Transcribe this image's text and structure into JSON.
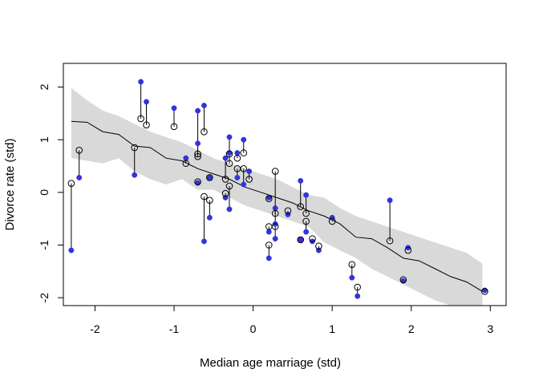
{
  "chart_data": {
    "type": "scatter",
    "title": "",
    "xlabel": "Median age marriage (std)",
    "ylabel": "Divorce rate (std)",
    "xlim": [
      -2.4,
      3.2
    ],
    "ylim": [
      -2.15,
      2.45
    ],
    "xticks": [
      -2,
      -1,
      0,
      1,
      2,
      3
    ],
    "yticks": [
      -2,
      -1,
      0,
      1,
      2
    ],
    "grid": false,
    "colors": {
      "band": "#d9d9d9",
      "mean_line": "#000000",
      "simulated_point": "#3333dd",
      "observed_point_stroke": "#000000",
      "segment": "#000000"
    },
    "interval_band": {
      "x": [
        -2.3,
        -2.1,
        -1.9,
        -1.7,
        -1.5,
        -1.3,
        -1.1,
        -0.9,
        -0.7,
        -0.5,
        -0.3,
        -0.1,
        0.1,
        0.3,
        0.5,
        0.7,
        0.9,
        1.1,
        1.3,
        1.5,
        1.7,
        1.9,
        2.1,
        2.3,
        2.5,
        2.7,
        2.9
      ],
      "upper": [
        1.98,
        1.75,
        1.55,
        1.45,
        1.3,
        1.15,
        1.05,
        0.95,
        0.8,
        0.65,
        0.55,
        0.45,
        0.35,
        0.25,
        0.1,
        -0.05,
        -0.1,
        -0.3,
        -0.45,
        -0.55,
        -0.65,
        -0.75,
        -0.85,
        -0.95,
        -1.05,
        -1.15,
        -1.35
      ],
      "lower": [
        0.65,
        0.6,
        0.55,
        0.65,
        0.4,
        0.25,
        0.15,
        0.25,
        0.05,
        0.05,
        -0.1,
        -0.25,
        -0.35,
        -0.45,
        -0.55,
        -0.65,
        -0.95,
        -1.1,
        -1.25,
        -1.45,
        -1.6,
        -1.75,
        -1.9,
        -2.05,
        -2.15,
        -2.15,
        -2.15
      ]
    },
    "mean_line": {
      "x": [
        -2.3,
        -2.1,
        -1.9,
        -1.7,
        -1.5,
        -1.3,
        -1.1,
        -0.9,
        -0.7,
        -0.5,
        -0.3,
        -0.1,
        0.1,
        0.3,
        0.5,
        0.7,
        0.9,
        1.1,
        1.3,
        1.5,
        1.7,
        1.9,
        2.1,
        2.3,
        2.5,
        2.7,
        2.9
      ],
      "y": [
        1.35,
        1.33,
        1.15,
        1.1,
        0.88,
        0.85,
        0.65,
        0.6,
        0.45,
        0.35,
        0.25,
        0.1,
        0.0,
        -0.1,
        -0.2,
        -0.35,
        -0.45,
        -0.6,
        -0.85,
        -0.88,
        -1.05,
        -1.25,
        -1.3,
        -1.45,
        -1.6,
        -1.7,
        -1.88
      ]
    },
    "series": [
      {
        "marker": "filled-blue-circle",
        "points": [
          [
            -2.3,
            -1.1
          ],
          [
            -2.2,
            0.28
          ],
          [
            -1.5,
            0.33
          ],
          [
            -1.42,
            2.1
          ],
          [
            -1.35,
            1.72
          ],
          [
            -1.0,
            1.6
          ],
          [
            -0.85,
            0.65
          ],
          [
            -0.7,
            1.55
          ],
          [
            -0.7,
            0.93
          ],
          [
            -0.62,
            1.65
          ],
          [
            -0.62,
            -0.93
          ],
          [
            -0.55,
            -0.48
          ],
          [
            -0.55,
            0.28
          ],
          [
            -0.7,
            0.18
          ],
          [
            -0.35,
            -0.1
          ],
          [
            -0.35,
            0.65
          ],
          [
            -0.3,
            1.05
          ],
          [
            -0.3,
            0.75
          ],
          [
            -0.3,
            -0.32
          ],
          [
            -0.2,
            0.28
          ],
          [
            -0.2,
            0.75
          ],
          [
            -0.12,
            1.0
          ],
          [
            -0.12,
            0.15
          ],
          [
            -0.05,
            0.4
          ],
          [
            0.2,
            -0.1
          ],
          [
            0.2,
            -0.75
          ],
          [
            0.2,
            -1.25
          ],
          [
            0.28,
            -0.88
          ],
          [
            0.28,
            -0.3
          ],
          [
            0.28,
            -0.6
          ],
          [
            0.44,
            -0.42
          ],
          [
            0.6,
            0.22
          ],
          [
            0.6,
            -0.9
          ],
          [
            0.67,
            -0.05
          ],
          [
            0.67,
            -0.75
          ],
          [
            0.75,
            -0.93
          ],
          [
            0.83,
            -1.1
          ],
          [
            1.0,
            -0.48
          ],
          [
            1.25,
            -1.62
          ],
          [
            1.32,
            -1.97
          ],
          [
            1.73,
            -0.15
          ],
          [
            1.9,
            -1.68
          ],
          [
            1.96,
            -1.05
          ],
          [
            2.93,
            -1.86
          ]
        ]
      },
      {
        "marker": "open-black-circle",
        "points": [
          [
            -2.3,
            0.17
          ],
          [
            -2.2,
            0.8
          ],
          [
            -1.5,
            0.85
          ],
          [
            -1.42,
            1.4
          ],
          [
            -1.35,
            1.28
          ],
          [
            -1.0,
            1.25
          ],
          [
            -0.85,
            0.55
          ],
          [
            -0.7,
            0.68
          ],
          [
            -0.7,
            0.73
          ],
          [
            -0.62,
            1.15
          ],
          [
            -0.62,
            -0.08
          ],
          [
            -0.55,
            -0.15
          ],
          [
            -0.55,
            0.28
          ],
          [
            -0.7,
            0.2
          ],
          [
            -0.35,
            -0.02
          ],
          [
            -0.35,
            0.25
          ],
          [
            -0.3,
            0.73
          ],
          [
            -0.3,
            0.55
          ],
          [
            -0.3,
            0.12
          ],
          [
            -0.2,
            0.45
          ],
          [
            -0.2,
            0.65
          ],
          [
            -0.12,
            0.75
          ],
          [
            -0.12,
            0.45
          ],
          [
            -0.05,
            0.25
          ],
          [
            0.2,
            -0.12
          ],
          [
            0.2,
            -0.65
          ],
          [
            0.2,
            -1.0
          ],
          [
            0.28,
            -0.65
          ],
          [
            0.28,
            -0.4
          ],
          [
            0.28,
            0.4
          ],
          [
            0.44,
            -0.35
          ],
          [
            0.6,
            -0.27
          ],
          [
            0.6,
            -0.9
          ],
          [
            0.67,
            -0.4
          ],
          [
            0.67,
            -0.55
          ],
          [
            0.75,
            -0.88
          ],
          [
            0.83,
            -1.02
          ],
          [
            1.0,
            -0.55
          ],
          [
            1.25,
            -1.37
          ],
          [
            1.32,
            -1.8
          ],
          [
            1.73,
            -0.92
          ],
          [
            1.9,
            -1.66
          ],
          [
            1.96,
            -1.1
          ],
          [
            2.93,
            -1.88
          ]
        ]
      }
    ]
  }
}
